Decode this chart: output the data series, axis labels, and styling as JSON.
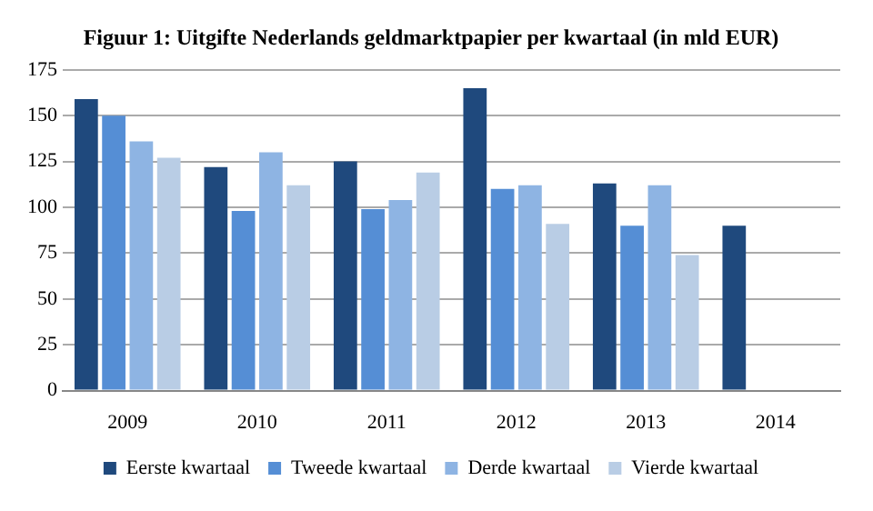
{
  "chart_data": {
    "type": "bar",
    "title": "Figuur 1: Uitgifte Nederlands geldmarktpapier per kwartaal (in mld EUR)",
    "categories": [
      "2009",
      "2010",
      "2011",
      "2012",
      "2013",
      "2014"
    ],
    "series": [
      {
        "name": "Eerste kwartaal",
        "color": "#1f497d",
        "values": [
          159,
          122,
          125,
          165,
          113,
          90
        ]
      },
      {
        "name": "Tweede kwartaal",
        "color": "#558ed5",
        "values": [
          150,
          98,
          99,
          110,
          90,
          null
        ]
      },
      {
        "name": "Derde kwartaal",
        "color": "#8eb4e3",
        "values": [
          136,
          130,
          104,
          112,
          112,
          null
        ]
      },
      {
        "name": "Vierde kwartaal",
        "color": "#b9cde5",
        "values": [
          127,
          112,
          119,
          91,
          74,
          null
        ]
      }
    ],
    "ylim": [
      0,
      175
    ],
    "yticks": [
      0,
      25,
      50,
      75,
      100,
      125,
      150,
      175
    ],
    "grid": "y",
    "legend": "bottom"
  }
}
